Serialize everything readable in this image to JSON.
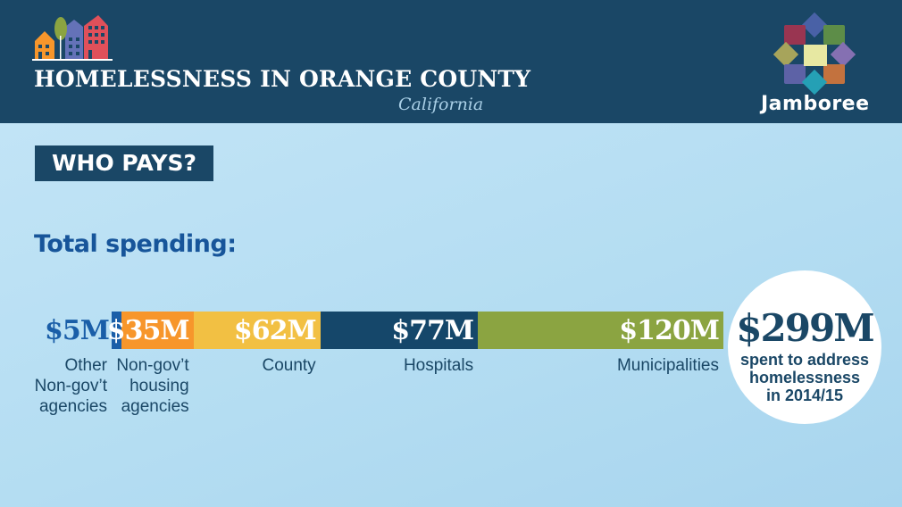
{
  "header": {
    "title": "HOMELESSNESS IN ORANGE COUNTY",
    "subtitle": "California",
    "brand": "Jamboree",
    "icons": [
      "houses-logo-icon",
      "jamboree-flower-logo-icon"
    ]
  },
  "section_label": "WHO PAYS?",
  "heading": "Total spending:",
  "chart_data": {
    "type": "bar",
    "orientation": "horizontal-stacked",
    "unit": "$M",
    "categories": [
      "Other Non-gov't agencies",
      "Non-gov't housing agencies",
      "County",
      "Hospitals",
      "Municipalities"
    ],
    "values": [
      5,
      35,
      62,
      77,
      120
    ],
    "value_labels": [
      "$5M",
      "$35M",
      "$62M",
      "$77M",
      "$120M"
    ],
    "label_lines": [
      [
        "Other",
        "Non-gov’t",
        "agencies"
      ],
      [
        "Non-gov’t",
        "housing",
        "agencies"
      ],
      [
        "County"
      ],
      [
        "Hospitals"
      ],
      [
        "Municipalities"
      ]
    ],
    "colors": [
      "#1a5ea8",
      "#f7962b",
      "#f2c043",
      "#15476a",
      "#8ba441"
    ],
    "total": 299,
    "total_label": "$299M",
    "total_caption": [
      "spent to address",
      "homelessness",
      "in 2014/15"
    ]
  }
}
